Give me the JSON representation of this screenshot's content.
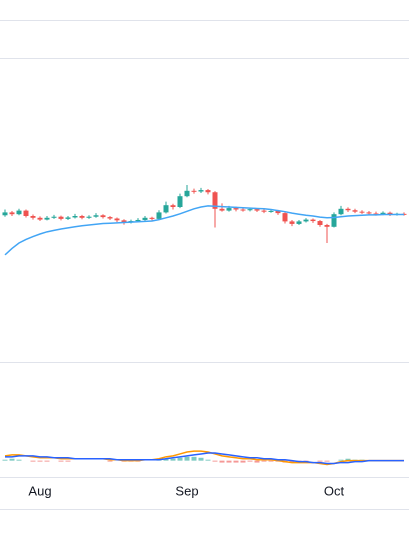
{
  "chart_data": [
    {
      "type": "candlestick",
      "categories": [
        null,
        null,
        null,
        null,
        null,
        "Aug",
        null,
        null,
        null,
        null,
        null,
        null,
        null,
        null,
        null,
        null,
        null,
        null,
        null,
        null,
        null,
        null,
        null,
        null,
        null,
        null,
        "Sep",
        null,
        null,
        null,
        null,
        null,
        null,
        null,
        null,
        null,
        null,
        null,
        null,
        null,
        null,
        null,
        null,
        null,
        null,
        null,
        null,
        "Oct",
        null,
        null,
        null,
        null,
        null,
        null,
        null,
        null,
        null,
        null
      ],
      "candles": [
        [
          40.2,
          41.8,
          39.8,
          41
        ],
        [
          41,
          41.4,
          40,
          40.5
        ],
        [
          40.5,
          42,
          40.2,
          41.5
        ],
        [
          41.5,
          41.8,
          39.6,
          40
        ],
        [
          40,
          40.4,
          39,
          39.5
        ],
        [
          39.5,
          39.9,
          38.6,
          39
        ],
        [
          39,
          40,
          38.8,
          39.5
        ],
        [
          39.5,
          40.3,
          39.2,
          39.8
        ],
        [
          39.8,
          40.1,
          38.8,
          39.2
        ],
        [
          39.2,
          40,
          38.9,
          39.6
        ],
        [
          39.6,
          40.6,
          39.3,
          40
        ],
        [
          40,
          40.3,
          39.1,
          39.5
        ],
        [
          39.5,
          40.2,
          39.2,
          39.8
        ],
        [
          39.8,
          40.8,
          39.5,
          40.2
        ],
        [
          40.2,
          40.5,
          39.3,
          39.7
        ],
        [
          39.7,
          40,
          38.9,
          39.3
        ],
        [
          39.3,
          39.6,
          38.3,
          38.8
        ],
        [
          38.8,
          39.1,
          37.6,
          38.2
        ],
        [
          38.2,
          39,
          37.9,
          38.6
        ],
        [
          38.6,
          39.4,
          38.3,
          38.9
        ],
        [
          38.9,
          40,
          38.6,
          39.5
        ],
        [
          39.5,
          39.8,
          38.8,
          39.2
        ],
        [
          39.2,
          41.6,
          39,
          41
        ],
        [
          41,
          44,
          40.7,
          43
        ],
        [
          43,
          43.4,
          41.8,
          42.5
        ],
        [
          42.5,
          46.2,
          42.2,
          45.5
        ],
        [
          45.5,
          48.6,
          45.2,
          47
        ],
        [
          47,
          47.6,
          46.2,
          46.8
        ],
        [
          46.8,
          47.8,
          46.4,
          47.2
        ],
        [
          47.2,
          47.5,
          46,
          46.6
        ],
        [
          46.6,
          46.9,
          36.8,
          42
        ],
        [
          42,
          43.5,
          41.2,
          41.5
        ],
        [
          41.5,
          42.8,
          41.2,
          42.2
        ],
        [
          42.2,
          42.6,
          41.3,
          41.8
        ],
        [
          41.8,
          42.2,
          41.2,
          41.6
        ],
        [
          41.6,
          42.3,
          41.3,
          41.9
        ],
        [
          41.9,
          42.2,
          41.1,
          41.5
        ],
        [
          41.5,
          41.8,
          40.8,
          41.2
        ],
        [
          41.2,
          41.8,
          40.9,
          41.4
        ],
        [
          41.4,
          41.7,
          40.3,
          40.8
        ],
        [
          40.8,
          41,
          37.9,
          38.5
        ],
        [
          38.5,
          38.9,
          37.2,
          37.8
        ],
        [
          37.8,
          38.9,
          37.5,
          38.5
        ],
        [
          38.5,
          39.4,
          38.2,
          39
        ],
        [
          39,
          39.3,
          38.1,
          38.6
        ],
        [
          38.6,
          38.9,
          37,
          37.5
        ],
        [
          37.5,
          37.8,
          32.5,
          37
        ],
        [
          37,
          41,
          36.8,
          40.5
        ],
        [
          40.5,
          42.8,
          40.2,
          42
        ],
        [
          42,
          42.4,
          41.1,
          41.6
        ],
        [
          41.6,
          42,
          40.8,
          41.2
        ],
        [
          41.2,
          41.6,
          40.6,
          41
        ],
        [
          41,
          41.4,
          40.3,
          40.7
        ],
        [
          40.7,
          41.2,
          40.1,
          40.5
        ],
        [
          40.5,
          41.3,
          40.2,
          40.9
        ],
        [
          40.9,
          41.2,
          40,
          40.4
        ],
        [
          40.4,
          40.9,
          40.1,
          40.6
        ],
        [
          40.6,
          41,
          40.1,
          40.5
        ]
      ],
      "up_color": "#26a69a",
      "down_color": "#ef5350",
      "ma": {
        "color": "#42a5f5",
        "values": [
          29.2,
          31,
          32.5,
          33.5,
          34.3,
          35,
          35.6,
          36,
          36.4,
          36.7,
          37,
          37.3,
          37.5,
          37.7,
          37.9,
          38,
          38.1,
          38.2,
          38.3,
          38.4,
          38.5,
          38.6,
          39,
          39.5,
          40,
          40.6,
          41.3,
          42,
          42.5,
          42.8,
          42.7,
          42.6,
          42.5,
          42.4,
          42.3,
          42.2,
          42.1,
          42,
          41.8,
          41.5,
          41.2,
          40.8,
          40.5,
          40.2,
          40,
          39.7,
          39.5,
          39.6,
          39.8,
          40,
          40.1,
          40.2,
          40.3,
          40.3,
          40.4,
          40.4,
          40.4,
          40.4
        ]
      },
      "ylim": [
        0,
        100
      ]
    },
    {
      "type": "macd",
      "ylim": [
        -1.5,
        10
      ],
      "series": [
        {
          "color": "#ff9800",
          "values": [
            0.5,
            0.6,
            0.6,
            0.5,
            0.4,
            0.3,
            0.3,
            0.3,
            0.2,
            0.2,
            0.2,
            0.2,
            0.2,
            0.2,
            0.2,
            0.1,
            0.1,
            0,
            0,
            0,
            0.1,
            0.1,
            0.2,
            0.4,
            0.5,
            0.7,
            0.9,
            1,
            1,
            0.9,
            0.7,
            0.5,
            0.4,
            0.3,
            0.2,
            0.2,
            0.1,
            0.1,
            0.1,
            0,
            -0.1,
            -0.2,
            -0.2,
            -0.2,
            -0.2,
            -0.3,
            -0.4,
            -0.3,
            -0.1,
            0,
            0,
            0,
            0,
            0,
            0,
            0,
            0,
            0
          ]
        },
        {
          "color": "#2962ff",
          "values": [
            0.4,
            0.4,
            0.5,
            0.5,
            0.5,
            0.4,
            0.4,
            0.3,
            0.3,
            0.3,
            0.2,
            0.2,
            0.2,
            0.2,
            0.2,
            0.2,
            0.1,
            0.1,
            0.1,
            0.1,
            0.1,
            0.1,
            0.1,
            0.2,
            0.3,
            0.4,
            0.5,
            0.6,
            0.7,
            0.8,
            0.8,
            0.7,
            0.6,
            0.5,
            0.4,
            0.3,
            0.3,
            0.2,
            0.2,
            0.1,
            0.1,
            0,
            -0.1,
            -0.1,
            -0.2,
            -0.2,
            -0.3,
            -0.3,
            -0.2,
            -0.2,
            -0.1,
            -0.1,
            0,
            0,
            0,
            0,
            0,
            0
          ]
        }
      ],
      "histogram": {
        "up_color": "#26a69a",
        "down_color": "#ef5350",
        "values": [
          0.1,
          0.2,
          0.1,
          0,
          -0.1,
          -0.1,
          -0.1,
          0,
          -0.1,
          -0.1,
          0,
          0,
          0,
          0,
          0,
          -0.1,
          0,
          -0.1,
          -0.1,
          -0.1,
          0,
          0,
          0.1,
          0.2,
          0.2,
          0.3,
          0.4,
          0.4,
          0.3,
          0.1,
          -0.1,
          -0.2,
          -0.2,
          -0.2,
          -0.2,
          -0.1,
          -0.2,
          -0.1,
          -0.1,
          -0.1,
          -0.2,
          -0.2,
          -0.1,
          -0.1,
          0,
          -0.1,
          -0.1,
          0,
          0.1,
          0.2,
          0.1,
          0.1,
          0,
          0,
          0,
          0,
          0,
          0
        ]
      }
    }
  ]
}
